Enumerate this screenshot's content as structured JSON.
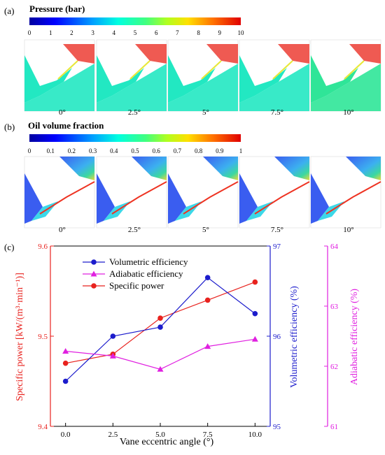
{
  "panel_a": {
    "letter": "(a)",
    "title": "Pressure (bar)",
    "scale_ticks": [
      "0",
      "1",
      "2",
      "3",
      "4",
      "5",
      "6",
      "7",
      "8",
      "9",
      "10"
    ],
    "angle_labels": [
      "0°",
      "2.5°",
      "5°",
      "7.5°",
      "10°"
    ],
    "colors": {
      "high_region": "#ef5a52",
      "low_region": "#22e8c2",
      "low_region_10": "#2fe598"
    }
  },
  "panel_b": {
    "letter": "(b)",
    "title": "Oil volume fraction",
    "scale_ticks": [
      "0",
      "0.1",
      "0.2",
      "0.3",
      "0.4",
      "0.5",
      "0.6",
      "0.7",
      "0.8",
      "0.9",
      "1"
    ],
    "angle_labels": [
      "0°",
      "2.5°",
      "5°",
      "7.5°",
      "10°"
    ],
    "colors": {
      "oil_low": "#3a5df0",
      "oil_mid": "#3cd8e8",
      "oil_high": "#f0d838"
    }
  },
  "panel_c": {
    "letter": "(c)",
    "legend": [
      "Volumetric efficiency",
      "Adiabatic efficiency",
      "Specific power"
    ],
    "colors": {
      "specific_power": "#e8221e",
      "volumetric": "#1c1ccc",
      "adiabatic": "#e020e0"
    }
  },
  "chart_data": {
    "type": "line",
    "x": [
      0.0,
      2.5,
      5.0,
      7.5,
      10.0
    ],
    "xlabel": "Vane eccentric angle  (°)",
    "xlim": [
      -0.8,
      10.8
    ],
    "x_ticks": [
      "0.0",
      "2.5",
      "5.0",
      "7.5",
      "10.0"
    ],
    "series": [
      {
        "name": "Specific power",
        "axis": "left",
        "values": [
          9.47,
          9.48,
          9.52,
          9.54,
          9.56
        ]
      },
      {
        "name": "Volumetric efficiency",
        "axis": "right1",
        "values": [
          95.5,
          96.0,
          96.1,
          96.65,
          96.25
        ]
      },
      {
        "name": "Adiabatic efficiency",
        "axis": "right2",
        "values": [
          62.25,
          62.17,
          61.95,
          62.33,
          62.45
        ]
      }
    ],
    "axes": {
      "left": {
        "label": "Specific power [kW/(m³·min⁻¹)]",
        "ylim": [
          9.4,
          9.6
        ],
        "ticks": [
          "9.4",
          "9.5",
          "9.6"
        ]
      },
      "right1": {
        "label": "Volumetric efficiency (%)",
        "ylim": [
          95,
          97
        ],
        "ticks": [
          "95",
          "96",
          "97"
        ]
      },
      "right2": {
        "label": "Adiabatic efficiency (%)",
        "ylim": [
          61,
          64
        ],
        "ticks": [
          "61",
          "62",
          "63",
          "64"
        ]
      }
    },
    "legend_position": "top-left",
    "grid": false
  }
}
